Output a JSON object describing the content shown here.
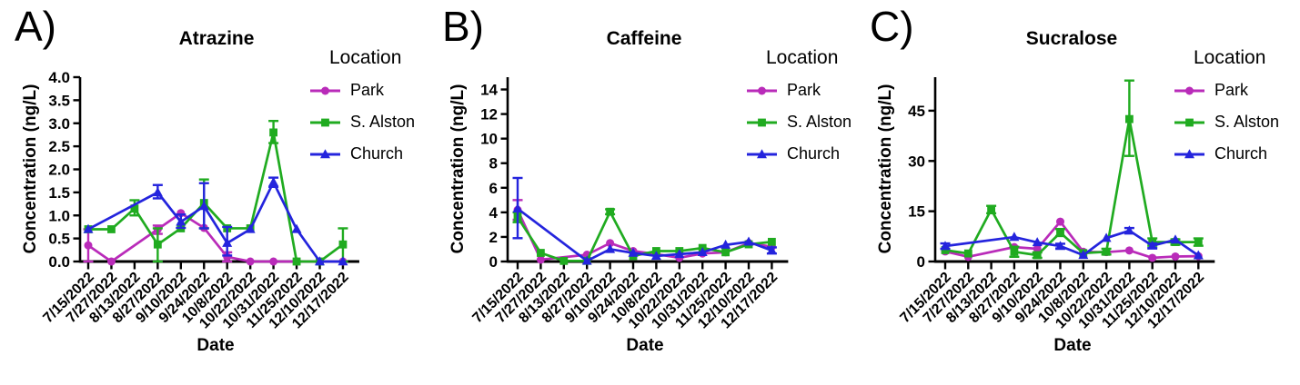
{
  "chart_data": [
    {
      "type": "line",
      "panel_label": "A)",
      "title": "Atrazine",
      "xlabel": "Date",
      "ylabel": "Concentration (ng/L)",
      "legend_title": "Location",
      "legend_position": "right",
      "grid": false,
      "x": [
        "7/15/2022",
        "7/27/2022",
        "8/13/2022",
        "8/27/2022",
        "9/10/2022",
        "9/24/2022",
        "10/8/2022",
        "10/22/2022",
        "10/31/2022",
        "11/25/2022",
        "12/10/2022",
        "12/17/2022"
      ],
      "ylim": [
        0,
        4.0
      ],
      "yticks": [
        0,
        0.5,
        1.0,
        1.5,
        2.0,
        2.5,
        3.0,
        3.5,
        4.0
      ],
      "ytick_decimals": 1,
      "series": [
        {
          "name": "Park",
          "color": "#b92bb9",
          "marker": "circle",
          "values": [
            0.35,
            0,
            null,
            0.7,
            1.05,
            0.73,
            0.1,
            0,
            0,
            0,
            0,
            0
          ],
          "errors": [
            [
              0,
              0.7
            ],
            null,
            null,
            [
              0.6,
              0.78
            ],
            null,
            null,
            [
              0,
              0.2
            ],
            null,
            null,
            null,
            null,
            null
          ]
        },
        {
          "name": "S. Alston",
          "color": "#20ab20",
          "marker": "square",
          "values": [
            0.7,
            0.7,
            1.15,
            0.37,
            0.72,
            1.27,
            0.72,
            0.72,
            2.8,
            0,
            0,
            0.37
          ],
          "errors": [
            null,
            null,
            [
              1.0,
              1.33
            ],
            [
              0,
              0.72
            ],
            null,
            [
              0.72,
              1.78
            ],
            null,
            null,
            [
              2.57,
              3.05
            ],
            null,
            null,
            [
              0,
              0.72
            ]
          ]
        },
        {
          "name": "Church",
          "color": "#2424dd",
          "marker": "triangle",
          "values": [
            0.7,
            null,
            null,
            1.5,
            0.86,
            1.2,
            0.4,
            0.7,
            1.72,
            0.7,
            0,
            0
          ],
          "errors": [
            null,
            null,
            null,
            [
              1.37,
              1.66
            ],
            [
              0.73,
              1.02
            ],
            [
              0.72,
              1.7
            ],
            [
              0.13,
              0.75
            ],
            null,
            [
              1.62,
              1.82
            ],
            null,
            null,
            null
          ]
        }
      ]
    },
    {
      "type": "line",
      "panel_label": "B)",
      "title": "Caffeine",
      "xlabel": "Date",
      "ylabel": "Concentration (ng/L)",
      "legend_title": "Location",
      "legend_position": "right",
      "grid": false,
      "x": [
        "7/15/2022",
        "7/27/2022",
        "8/13/2022",
        "8/27/2022",
        "9/10/2022",
        "9/24/2022",
        "10/8/2022",
        "10/22/2022",
        "10/31/2022",
        "11/25/2022",
        "12/10/2022",
        "12/17/2022"
      ],
      "ylim": [
        0,
        15
      ],
      "yticks": [
        0,
        2,
        4,
        6,
        8,
        10,
        12,
        14
      ],
      "ytick_decimals": 0,
      "series": [
        {
          "name": "Park",
          "color": "#b92bb9",
          "marker": "circle",
          "values": [
            4.2,
            0.15,
            null,
            0.55,
            1.5,
            0.85,
            0.6,
            0.3,
            0.65,
            0.75,
            1.5,
            1.2
          ],
          "errors": [
            [
              3.4,
              5.0
            ],
            null,
            null,
            null,
            null,
            null,
            null,
            null,
            null,
            null,
            null,
            null
          ]
        },
        {
          "name": "S. Alston",
          "color": "#20ab20",
          "marker": "square",
          "values": [
            3.6,
            0.7,
            0.05,
            0.05,
            4.05,
            0.45,
            0.85,
            0.85,
            1.1,
            0.75,
            1.4,
            1.6
          ],
          "errors": [
            [
              3.2,
              4.0
            ],
            null,
            null,
            null,
            [
              3.85,
              4.25
            ],
            null,
            null,
            null,
            null,
            null,
            null,
            null
          ]
        },
        {
          "name": "Church",
          "color": "#2424dd",
          "marker": "triangle",
          "values": [
            4.3,
            null,
            null,
            0.05,
            1.0,
            0.7,
            0.45,
            0.6,
            0.75,
            1.35,
            1.6,
            0.9
          ],
          "errors": [
            [
              1.9,
              6.8
            ],
            null,
            null,
            null,
            null,
            null,
            null,
            null,
            null,
            null,
            null,
            [
              0.65,
              1.15
            ]
          ]
        }
      ]
    },
    {
      "type": "line",
      "panel_label": "C)",
      "title": "Sucralose",
      "xlabel": "Date",
      "ylabel": "Concentration (ng/L)",
      "legend_title": "Location",
      "legend_position": "right",
      "grid": false,
      "x": [
        "7/15/2022",
        "7/27/2022",
        "8/13/2022",
        "8/27/2022",
        "9/10/2022",
        "9/24/2022",
        "10/8/2022",
        "10/22/2022",
        "10/31/2022",
        "11/25/2022",
        "12/10/2022",
        "12/17/2022"
      ],
      "ylim": [
        0,
        55
      ],
      "yticks": [
        0,
        15,
        30,
        45
      ],
      "ytick_decimals": 0,
      "series": [
        {
          "name": "Park",
          "color": "#b92bb9",
          "marker": "circle",
          "values": [
            3.0,
            1.4,
            null,
            4.3,
            3.8,
            11.9,
            2.9,
            2.8,
            3.3,
            1.1,
            1.5,
            1.6
          ],
          "errors": [
            null,
            null,
            null,
            null,
            null,
            null,
            null,
            null,
            null,
            null,
            null,
            null
          ]
        },
        {
          "name": "S. Alston",
          "color": "#20ab20",
          "marker": "square",
          "values": [
            3.4,
            2.4,
            15.5,
            2.9,
            1.9,
            8.6,
            2.5,
            2.9,
            42.5,
            5.8,
            5.8,
            5.8
          ],
          "errors": [
            null,
            null,
            [
              14.4,
              16.6
            ],
            [
              1.4,
              4.4
            ],
            [
              1.1,
              2.7
            ],
            [
              7.6,
              9.7
            ],
            null,
            [
              2.1,
              3.8
            ],
            [
              31.5,
              54.0
            ],
            [
              4.7,
              6.9
            ],
            [
              5.0,
              6.6
            ],
            [
              4.7,
              6.9
            ]
          ]
        },
        {
          "name": "Church",
          "color": "#2424dd",
          "marker": "triangle",
          "values": [
            4.6,
            null,
            null,
            7.3,
            5.7,
            4.6,
            1.9,
            7.0,
            9.2,
            4.7,
            6.5,
            1.8
          ],
          "errors": [
            [
              3.8,
              5.4
            ],
            null,
            null,
            null,
            null,
            [
              3.9,
              5.3
            ],
            null,
            null,
            [
              8.4,
              10.0
            ],
            [
              4.0,
              5.4
            ],
            null,
            null
          ]
        }
      ]
    }
  ]
}
